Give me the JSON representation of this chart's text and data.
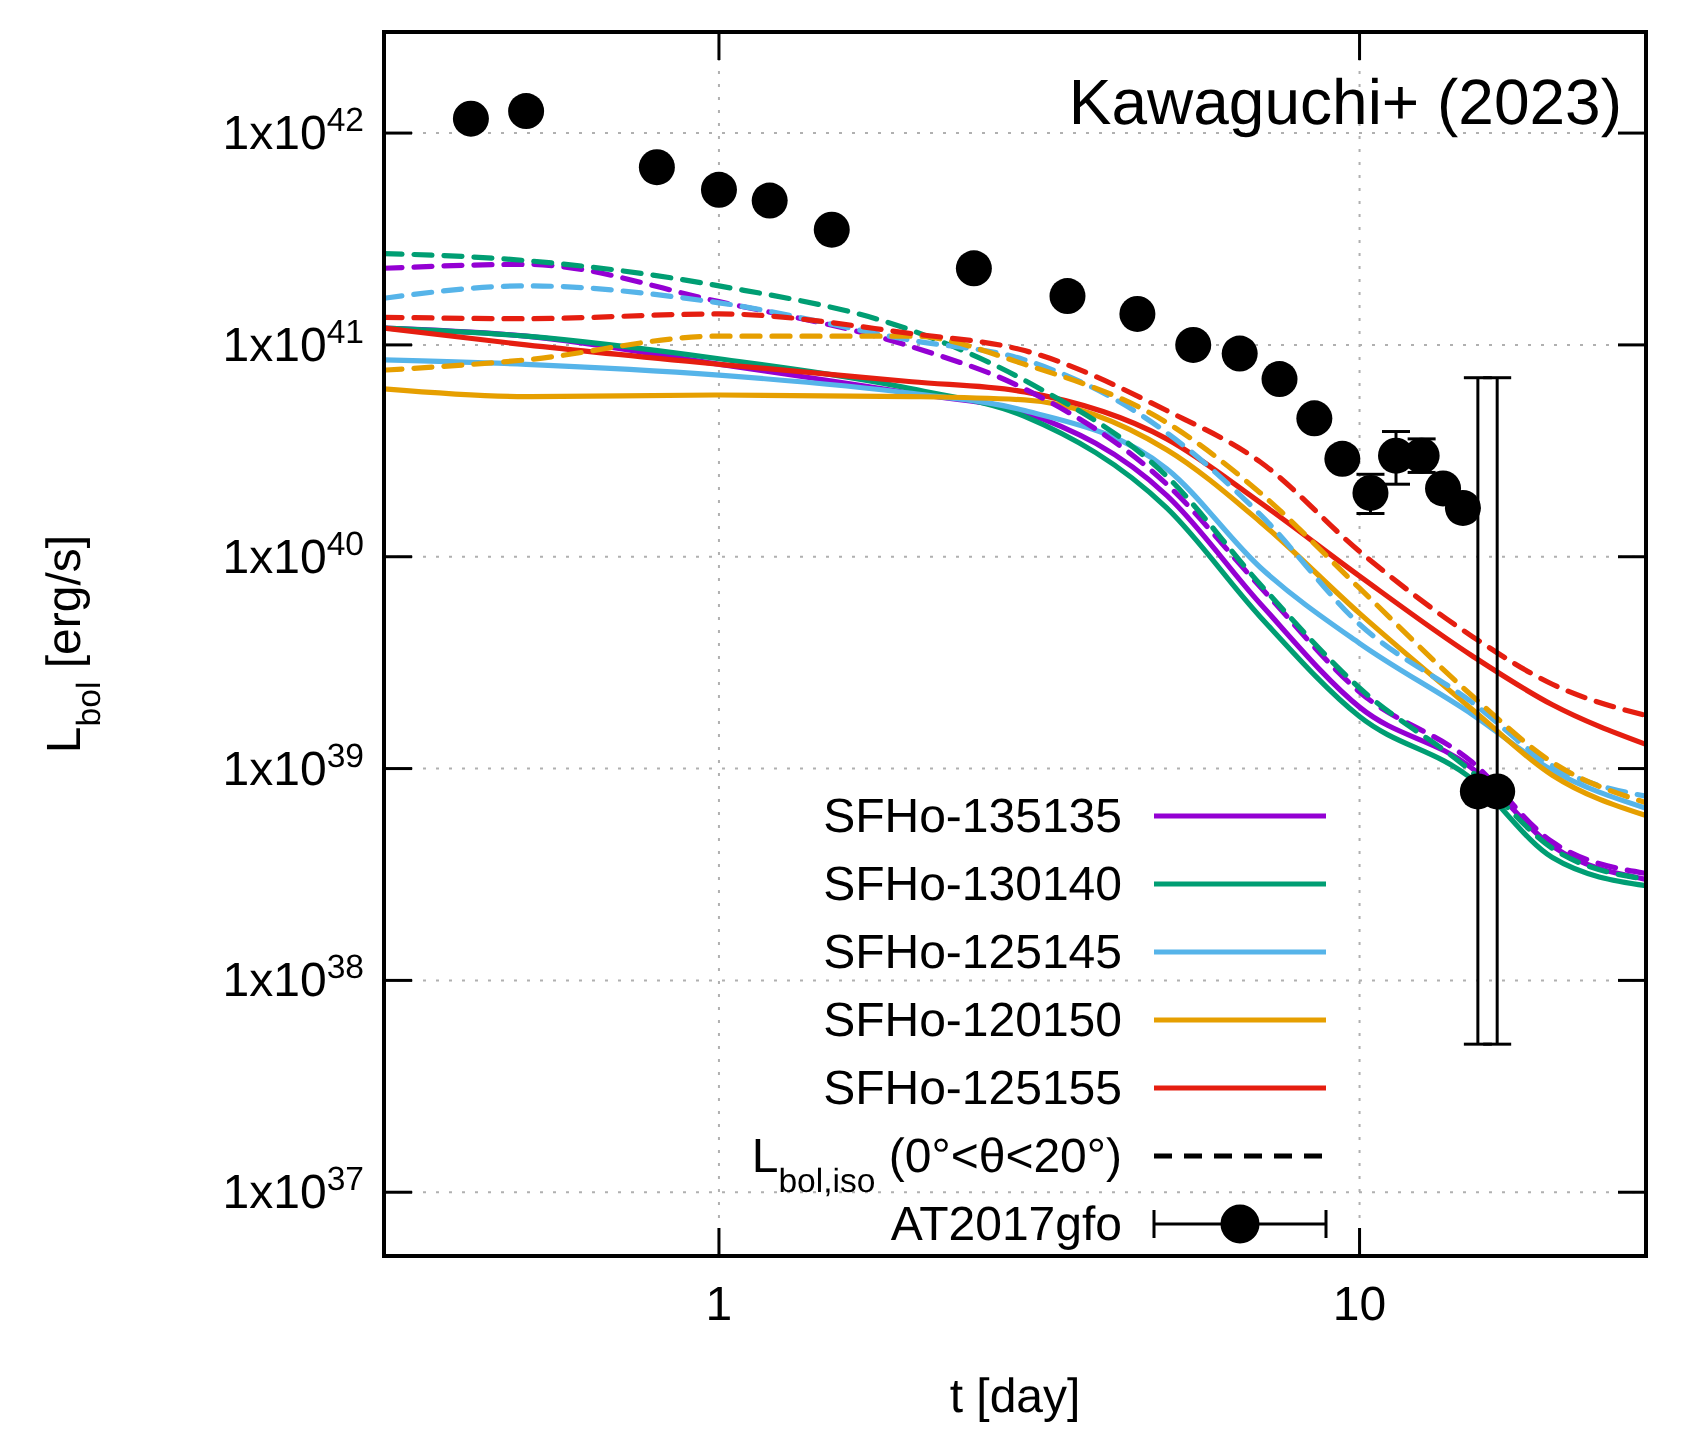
{
  "chart_data": {
    "type": "line",
    "title": "Kawaguchi+ (2023)",
    "xlabel": "t [day]",
    "ylabel": "L$_{bol}$ [erg/s]",
    "log": "xy",
    "grid": true,
    "legend": "bottom right",
    "xlim": [
      0.3,
      28
    ],
    "xticks": [
      1,
      10
    ],
    "ylim": [
      5e+36,
      3e+42
    ],
    "yticks": [
      {
        "value": 1e+37,
        "label": "1x10$^{37}$"
      },
      {
        "value": 1e+38,
        "label": "1x10$^{38}$"
      },
      {
        "value": 1e+39,
        "label": "1x10$^{39}$"
      },
      {
        "value": 1e+40,
        "label": "1x10$^{40}$"
      },
      {
        "value": 1e+41,
        "label": "1x10$^{41}$"
      },
      {
        "value": 1e+42,
        "label": "1x10$^{42}$"
      }
    ],
    "x": [
      0.3,
      0.5,
      1,
      2,
      3,
      5,
      7,
      10,
      15,
      20,
      28
    ],
    "series": [
      {
        "name": "SFHo-135135",
        "color": "#9400d3",
        "line_style": "solid",
        "values": [
          1.2e+41,
          1.1e+41,
          8.1e+40,
          5.9e+40,
          4.8e+40,
          1.95e+40,
          6e+39,
          1.95e+39,
          1e+39,
          4.3e+38,
          3e+38
        ]
      },
      {
        "name": "SFHo-130140",
        "color": "#009e73",
        "line_style": "solid",
        "values": [
          1.2e+41,
          1.1e+41,
          8.6e+40,
          6.2e+40,
          4.6e+40,
          1.7e+40,
          5.2e+39,
          1.76e+39,
          8.9e+38,
          3.8e+38,
          2.8e+38
        ]
      },
      {
        "name": "SFHo-125145",
        "color": "#56b4e9",
        "line_style": "solid",
        "values": [
          8.5e+40,
          8.1e+40,
          7.2e+40,
          5.9e+40,
          4.9e+40,
          2.6e+40,
          8.9e+39,
          3.9e+39,
          1.8e+39,
          9.8e+38,
          6.5e+38
        ]
      },
      {
        "name": "SFHo-120150",
        "color": "#e69f00",
        "line_style": "solid",
        "values": [
          6.2e+40,
          5.7e+40,
          5.8e+40,
          5.7e+40,
          5.5e+40,
          3.2e+40,
          1.46e+40,
          5.4e+39,
          1.9e+39,
          9.3e+38,
          6e+38
        ]
      },
      {
        "name": "SFHo-125155",
        "color": "#e51e10",
        "line_style": "solid",
        "values": [
          1.2e+41,
          1e+41,
          8.1e+40,
          6.7e+40,
          6e+40,
          3.6e+40,
          1.8e+40,
          8.1e+39,
          3.4e+39,
          2e+39,
          1.3e+39
        ]
      },
      {
        "color": "#9400d3",
        "line_style": "dashed",
        "values": [
          2.3e+41,
          2.4e+41,
          1.6e+41,
          9.8e+40,
          6.2e+40,
          2.2e+40,
          7.2e+39,
          2.3e+39,
          1.07e+39,
          4.5e+38,
          3.2e+38
        ]
      },
      {
        "color": "#009e73",
        "line_style": "dashed",
        "values": [
          2.7e+41,
          2.5e+41,
          1.9e+41,
          1.17e+41,
          6.8e+40,
          2.4e+40,
          7.4e+39,
          2.4e+39,
          9.6e+38,
          4.2e+38,
          3e+38
        ]
      },
      {
        "color": "#56b4e9",
        "line_style": "dashed",
        "values": [
          1.66e+41,
          1.9e+41,
          1.58e+41,
          1.05e+41,
          8.5e+40,
          3.85e+40,
          1.58e+40,
          4.8e+39,
          2.05e+39,
          1.03e+39,
          7.4e+38
        ]
      },
      {
        "color": "#e69f00",
        "line_style": "dashed",
        "values": [
          7.6e+40,
          8.5e+40,
          1.1e+41,
          1.1e+41,
          8.1e+40,
          4.3e+40,
          2e+40,
          7.1e+39,
          2.2e+39,
          1.07e+39,
          6.9e+38
        ]
      },
      {
        "color": "#e51e10",
        "line_style": "dashed",
        "values": [
          1.35e+41,
          1.33e+41,
          1.4e+41,
          1.13e+41,
          9.4e+40,
          4.9e+40,
          2.8e+40,
          1.06e+40,
          4.2e+39,
          2.5e+39,
          1.78e+39
        ]
      },
      {
        "name": "L$_{bol,iso}$ (0°<θ<20°)",
        "color": "#000000",
        "line_style": "dashed",
        "values": [
          null,
          null,
          null,
          null,
          null,
          null,
          null,
          null,
          null,
          null,
          null
        ]
      },
      {
        "name": "AT2017gfo",
        "type": "scatter",
        "marker": "circle",
        "color": "#000000",
        "x": [
          0.41,
          0.5,
          0.8,
          1.0,
          1.2,
          1.5,
          2.5,
          3.5,
          4.5,
          5.5,
          6.5,
          7.5,
          8.5,
          9.4,
          10.4,
          11.4,
          12.5,
          13.5,
          14.5,
          15.3,
          16.4
        ],
        "values": [
          1.17e+42,
          1.27e+42,
          6.9e+41,
          5.4e+41,
          4.8e+41,
          3.5e+41,
          2.3e+41,
          1.7e+41,
          1.4e+41,
          1e+41,
          9.1e+40,
          6.9e+40,
          4.5e+40,
          2.9e+40,
          2e+40,
          3e+40,
          3e+40,
          2.1e+40,
          1.7e+40,
          7.8e+38,
          7.8e+38
        ],
        "errors": [
          null,
          null,
          null,
          null,
          null,
          null,
          null,
          null,
          null,
          null,
          null,
          null,
          null,
          null,
          [
            1.6e+40,
            2.45e+40
          ],
          [
            2.2e+40,
            3.9e+40
          ],
          [
            2.5e+40,
            3.6e+40
          ],
          null,
          null,
          [
            5e+37,
            7e+40
          ],
          [
            5e+37,
            7e+40
          ]
        ]
      }
    ]
  }
}
